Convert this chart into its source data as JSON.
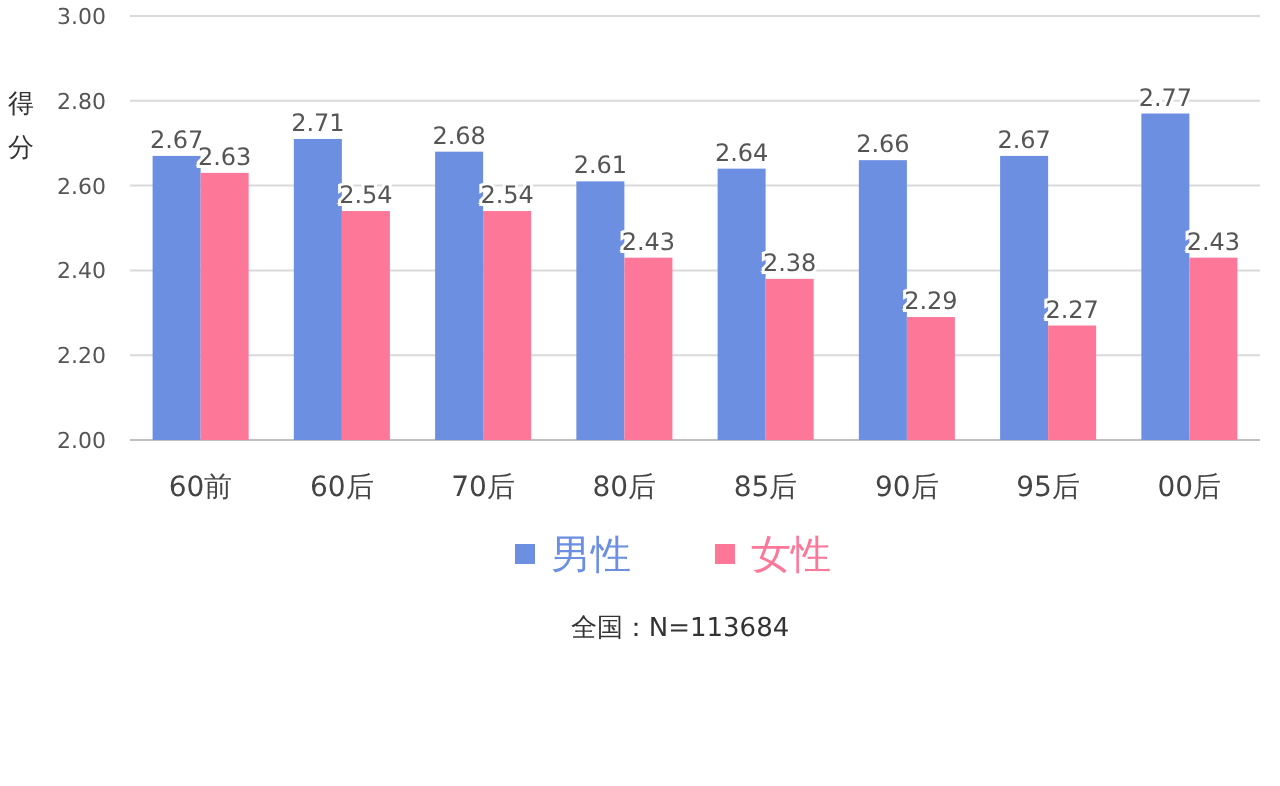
{
  "chart_data": {
    "type": "bar",
    "ylabel": "得分",
    "categories": [
      "60前",
      "60后",
      "70后",
      "80后",
      "85后",
      "90后",
      "95后",
      "00后"
    ],
    "series": [
      {
        "name": "男性",
        "color": "#6c8fe2",
        "values": [
          2.67,
          2.71,
          2.68,
          2.61,
          2.64,
          2.66,
          2.67,
          2.77
        ]
      },
      {
        "name": "女性",
        "color": "#fd7799",
        "values": [
          2.63,
          2.54,
          2.54,
          2.43,
          2.38,
          2.29,
          2.27,
          2.43
        ]
      }
    ],
    "ylim": [
      2.0,
      3.0
    ],
    "yticks": [
      {
        "value": 2.0,
        "label": "2.00"
      },
      {
        "value": 2.2,
        "label": "2.20"
      },
      {
        "value": 2.4,
        "label": "2.40"
      },
      {
        "value": 2.6,
        "label": "2.60"
      },
      {
        "value": 2.8,
        "label": "2.80"
      },
      {
        "value": 3.0,
        "label": "3.00"
      }
    ],
    "grid": "y",
    "legend": "bottom",
    "data_labels": true,
    "annotations": [
      "全国：N=113684"
    ]
  }
}
